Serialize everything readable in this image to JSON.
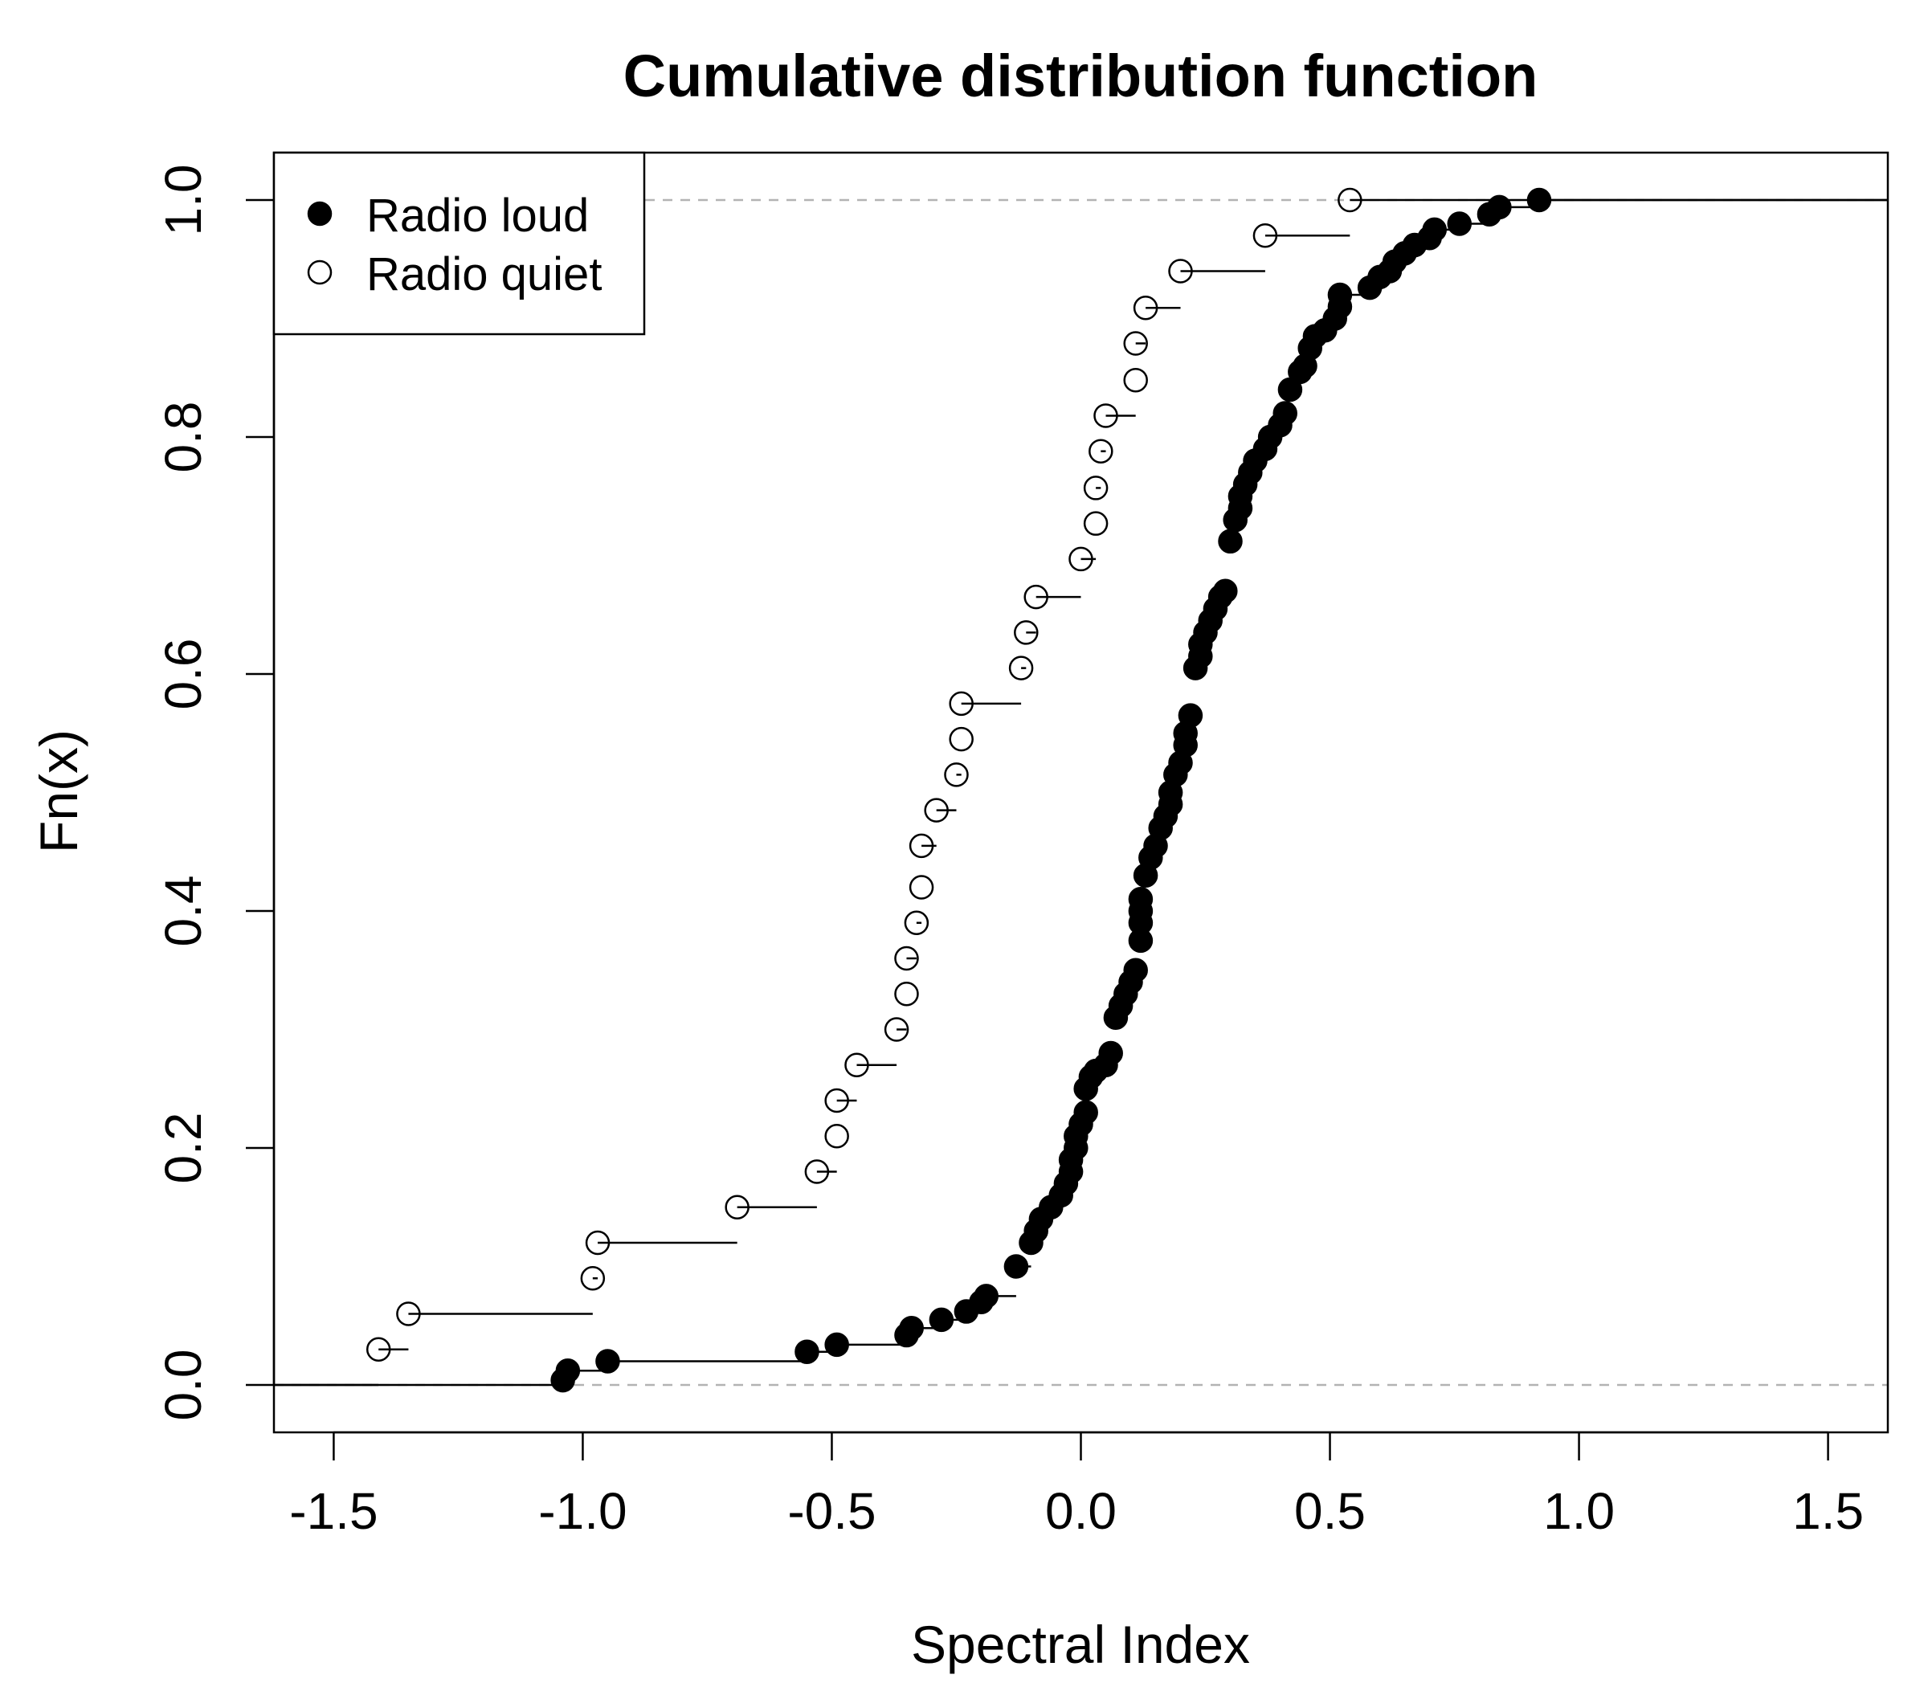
{
  "chart_data": {
    "type": "scatter",
    "subtype": "ecdf",
    "title": "Cumulative distribution function",
    "xlabel": "Spectral Index",
    "ylabel": "Fn(x)",
    "xlim": [
      -1.62,
      1.62
    ],
    "ylim": [
      -0.04,
      1.04
    ],
    "x_ticks": [
      -1.5,
      -1.0,
      -0.5,
      0.0,
      0.5,
      1.0,
      1.5
    ],
    "x_tick_labels": [
      "-1.5",
      "-1.0",
      "-0.5",
      "0.0",
      "0.5",
      "1.0",
      "1.5"
    ],
    "y_ticks": [
      0.0,
      0.2,
      0.4,
      0.6,
      0.8,
      1.0
    ],
    "y_tick_labels": [
      "0.0",
      "0.2",
      "0.4",
      "0.6",
      "0.8",
      "1.0"
    ],
    "reference_lines": [
      0.0,
      1.0
    ],
    "legend": {
      "position": "top-left"
    },
    "series": [
      {
        "name": "Radio loud",
        "marker": "filled-circle",
        "color": "#000000",
        "points": [
          [
            -1.04,
            0.004
          ],
          [
            -1.03,
            0.012
          ],
          [
            -0.95,
            0.02
          ],
          [
            -0.55,
            0.028
          ],
          [
            -0.49,
            0.034
          ],
          [
            -0.35,
            0.042
          ],
          [
            -0.34,
            0.048
          ],
          [
            -0.28,
            0.055
          ],
          [
            -0.23,
            0.062
          ],
          [
            -0.2,
            0.07
          ],
          [
            -0.19,
            0.075
          ],
          [
            -0.13,
            0.1
          ],
          [
            -0.1,
            0.12
          ],
          [
            -0.09,
            0.13
          ],
          [
            -0.08,
            0.14
          ],
          [
            -0.06,
            0.15
          ],
          [
            -0.04,
            0.16
          ],
          [
            -0.03,
            0.17
          ],
          [
            -0.02,
            0.18
          ],
          [
            -0.02,
            0.19
          ],
          [
            -0.01,
            0.2
          ],
          [
            -0.01,
            0.21
          ],
          [
            0.0,
            0.22
          ],
          [
            0.01,
            0.23
          ],
          [
            0.01,
            0.25
          ],
          [
            0.02,
            0.26
          ],
          [
            0.03,
            0.265
          ],
          [
            0.05,
            0.27
          ],
          [
            0.06,
            0.28
          ],
          [
            0.07,
            0.31
          ],
          [
            0.08,
            0.32
          ],
          [
            0.09,
            0.33
          ],
          [
            0.1,
            0.34
          ],
          [
            0.11,
            0.35
          ],
          [
            0.12,
            0.375
          ],
          [
            0.12,
            0.39
          ],
          [
            0.12,
            0.4
          ],
          [
            0.12,
            0.41
          ],
          [
            0.13,
            0.43
          ],
          [
            0.14,
            0.445
          ],
          [
            0.15,
            0.455
          ],
          [
            0.16,
            0.47
          ],
          [
            0.17,
            0.48
          ],
          [
            0.18,
            0.49
          ],
          [
            0.18,
            0.5
          ],
          [
            0.19,
            0.515
          ],
          [
            0.2,
            0.525
          ],
          [
            0.21,
            0.54
          ],
          [
            0.21,
            0.55
          ],
          [
            0.22,
            0.565
          ],
          [
            0.23,
            0.605
          ],
          [
            0.24,
            0.615
          ],
          [
            0.24,
            0.625
          ],
          [
            0.25,
            0.635
          ],
          [
            0.26,
            0.645
          ],
          [
            0.27,
            0.655
          ],
          [
            0.28,
            0.665
          ],
          [
            0.29,
            0.67
          ],
          [
            0.3,
            0.712
          ],
          [
            0.31,
            0.73
          ],
          [
            0.32,
            0.74
          ],
          [
            0.32,
            0.75
          ],
          [
            0.33,
            0.76
          ],
          [
            0.34,
            0.77
          ],
          [
            0.35,
            0.78
          ],
          [
            0.37,
            0.79
          ],
          [
            0.38,
            0.8
          ],
          [
            0.4,
            0.81
          ],
          [
            0.41,
            0.82
          ],
          [
            0.42,
            0.84
          ],
          [
            0.44,
            0.855
          ],
          [
            0.45,
            0.86
          ],
          [
            0.46,
            0.875
          ],
          [
            0.47,
            0.885
          ],
          [
            0.49,
            0.89
          ],
          [
            0.51,
            0.9
          ],
          [
            0.52,
            0.91
          ],
          [
            0.52,
            0.92
          ],
          [
            0.58,
            0.926
          ],
          [
            0.6,
            0.935
          ],
          [
            0.62,
            0.94
          ],
          [
            0.63,
            0.948
          ],
          [
            0.65,
            0.955
          ],
          [
            0.67,
            0.962
          ],
          [
            0.7,
            0.968
          ],
          [
            0.71,
            0.975
          ],
          [
            0.76,
            0.98
          ],
          [
            0.82,
            0.988
          ],
          [
            0.84,
            0.994
          ],
          [
            0.92,
            1.0
          ]
        ]
      },
      {
        "name": "Radio quiet",
        "marker": "open-circle",
        "color": "#000000",
        "points": [
          [
            -1.41,
            0.03
          ],
          [
            -1.35,
            0.06
          ],
          [
            -0.98,
            0.09
          ],
          [
            -0.97,
            0.12
          ],
          [
            -0.69,
            0.15
          ],
          [
            -0.53,
            0.18
          ],
          [
            -0.49,
            0.21
          ],
          [
            -0.49,
            0.24
          ],
          [
            -0.45,
            0.27
          ],
          [
            -0.37,
            0.3
          ],
          [
            -0.35,
            0.33
          ],
          [
            -0.35,
            0.36
          ],
          [
            -0.33,
            0.39
          ],
          [
            -0.32,
            0.42
          ],
          [
            -0.32,
            0.455
          ],
          [
            -0.29,
            0.485
          ],
          [
            -0.25,
            0.515
          ],
          [
            -0.24,
            0.545
          ],
          [
            -0.24,
            0.575
          ],
          [
            -0.12,
            0.605
          ],
          [
            -0.11,
            0.635
          ],
          [
            -0.09,
            0.665
          ],
          [
            0.0,
            0.697
          ],
          [
            0.03,
            0.727
          ],
          [
            0.03,
            0.757
          ],
          [
            0.04,
            0.788
          ],
          [
            0.05,
            0.818
          ],
          [
            0.11,
            0.848
          ],
          [
            0.11,
            0.879
          ],
          [
            0.13,
            0.909
          ],
          [
            0.2,
            0.94
          ],
          [
            0.37,
            0.97
          ],
          [
            0.54,
            1.0
          ]
        ]
      }
    ]
  }
}
